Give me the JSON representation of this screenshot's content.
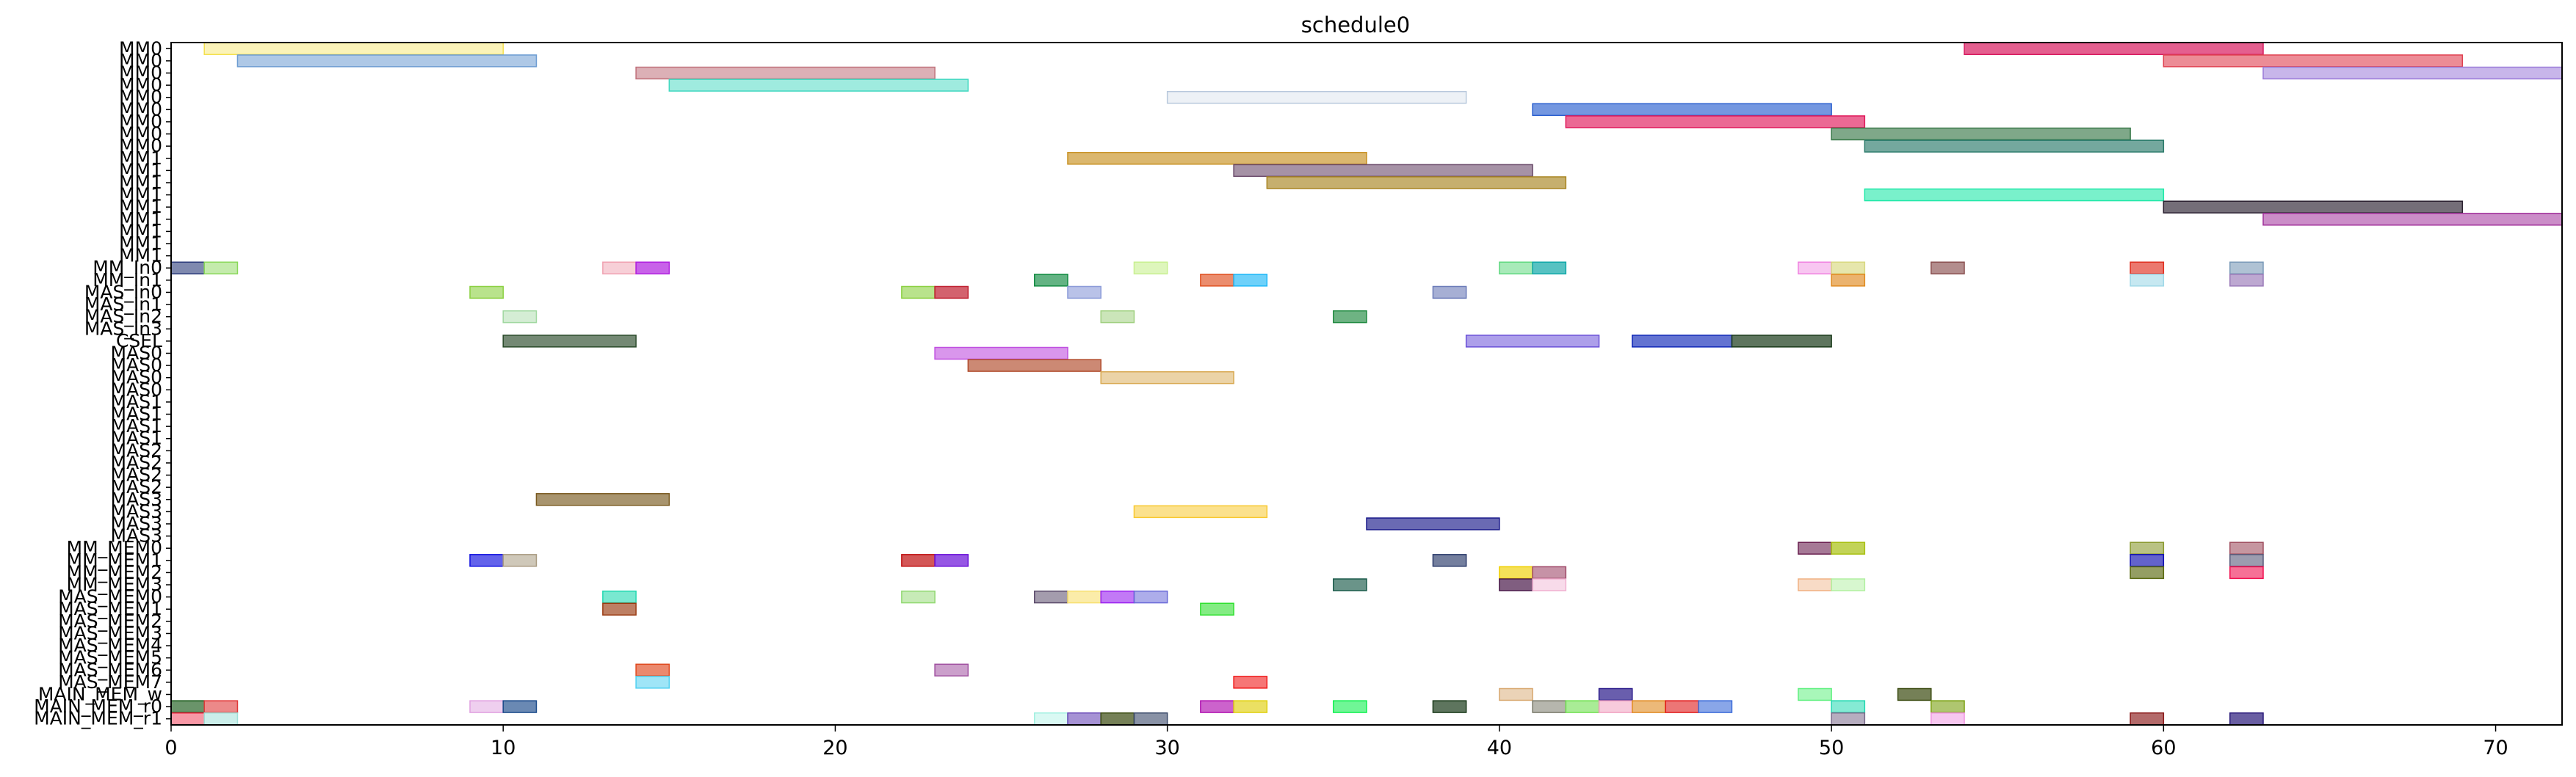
{
  "chart_data": {
    "type": "gantt",
    "title": "schedule0",
    "xlabel": "",
    "ylabel": "",
    "xlim": [
      0,
      72
    ],
    "xticks": [
      0,
      10,
      20,
      30,
      40,
      50,
      60,
      70
    ],
    "grid": false,
    "rows": [
      "MM0",
      "MM0",
      "MM0",
      "MM0",
      "MM0",
      "MM0",
      "MM0",
      "MM0",
      "MM0",
      "MM1",
      "MM1",
      "MM1",
      "MM1",
      "MM1",
      "MM1",
      "MM1",
      "MM1",
      "MM1",
      "MM_In0",
      "MM_In1",
      "MAS_In0",
      "MAS_In1",
      "MAS_In2",
      "MAS_In3",
      "CSEL",
      "MAS0",
      "MAS0",
      "MAS0",
      "MAS0",
      "MAS1",
      "MAS1",
      "MAS1",
      "MAS1",
      "MAS2",
      "MAS2",
      "MAS2",
      "MAS2",
      "MAS3",
      "MAS3",
      "MAS3",
      "MAS3",
      "MM_MEM0",
      "MM_MEM1",
      "MM_MEM2",
      "MM_MEM3",
      "MAS_MEM0",
      "MAS_MEM1",
      "MAS_MEM2",
      "MAS_MEM3",
      "MAS_MEM4",
      "MAS_MEM5",
      "MAS_MEM6",
      "MAS_MEM7",
      "MAIN_MEM_w",
      "MAIN_MEM_r0",
      "MAIN_MEM_r1"
    ],
    "tasks": [
      {
        "row": 0,
        "start": 1,
        "end": 10,
        "color": "#f4e04d",
        "alpha": 0.4
      },
      {
        "row": 0,
        "start": 54,
        "end": 63,
        "color": "#d81b60",
        "alpha": 0.7
      },
      {
        "row": 1,
        "start": 2,
        "end": 11,
        "color": "#6b9bd1",
        "alpha": 0.55
      },
      {
        "row": 1,
        "start": 60,
        "end": 69,
        "color": "#e04050",
        "alpha": 0.6
      },
      {
        "row": 2,
        "start": 14,
        "end": 23,
        "color": "#c0707a",
        "alpha": 0.55
      },
      {
        "row": 2,
        "start": 63,
        "end": 72,
        "color": "#9a7ad8",
        "alpha": 0.55
      },
      {
        "row": 3,
        "start": 15,
        "end": 24,
        "color": "#40d8c0",
        "alpha": 0.5
      },
      {
        "row": 4,
        "start": 30,
        "end": 39,
        "color": "#b8c8dc",
        "alpha": 0.25
      },
      {
        "row": 5,
        "start": 41,
        "end": 50,
        "color": "#2a5fcf",
        "alpha": 0.65
      },
      {
        "row": 6,
        "start": 42,
        "end": 51,
        "color": "#e0185a",
        "alpha": 0.65
      },
      {
        "row": 7,
        "start": 50,
        "end": 59,
        "color": "#3a7a4a",
        "alpha": 0.65
      },
      {
        "row": 8,
        "start": 51,
        "end": 60,
        "color": "#2a7a6a",
        "alpha": 0.65
      },
      {
        "row": 9,
        "start": 27,
        "end": 36,
        "color": "#c89020",
        "alpha": 0.65
      },
      {
        "row": 10,
        "start": 32,
        "end": 41,
        "color": "#6a4a6a",
        "alpha": 0.6
      },
      {
        "row": 11,
        "start": 33,
        "end": 42,
        "color": "#a88420",
        "alpha": 0.65
      },
      {
        "row": 12,
        "start": 51,
        "end": 60,
        "color": "#20e8a8",
        "alpha": 0.6
      },
      {
        "row": 13,
        "start": 60,
        "end": 69,
        "color": "#2a2030",
        "alpha": 0.65
      },
      {
        "row": 14,
        "start": 63,
        "end": 72,
        "color": "#a0309a",
        "alpha": 0.55
      },
      {
        "row": 18,
        "start": 0,
        "end": 1,
        "color": "#2a3a7a",
        "alpha": 0.6
      },
      {
        "row": 18,
        "start": 1,
        "end": 2,
        "color": "#8ad85a",
        "alpha": 0.5
      },
      {
        "row": 18,
        "start": 13,
        "end": 14,
        "color": "#f0a0b0",
        "alpha": 0.5
      },
      {
        "row": 18,
        "start": 14,
        "end": 15,
        "color": "#b020e0",
        "alpha": 0.7
      },
      {
        "row": 18,
        "start": 29,
        "end": 30,
        "color": "#c8f090",
        "alpha": 0.6
      },
      {
        "row": 18,
        "start": 40,
        "end": 41,
        "color": "#60d880",
        "alpha": 0.55
      },
      {
        "row": 18,
        "start": 41,
        "end": 42,
        "color": "#10a8a8",
        "alpha": 0.7
      },
      {
        "row": 18,
        "start": 49,
        "end": 50,
        "color": "#f080e0",
        "alpha": 0.45
      },
      {
        "row": 18,
        "start": 50,
        "end": 51,
        "color": "#d8d880",
        "alpha": 0.65
      },
      {
        "row": 18,
        "start": 53,
        "end": 54,
        "color": "#8a5050",
        "alpha": 0.65
      },
      {
        "row": 18,
        "start": 59,
        "end": 60,
        "color": "#e03020",
        "alpha": 0.65
      },
      {
        "row": 18,
        "start": 62,
        "end": 63,
        "color": "#7a9ab8",
        "alpha": 0.6
      },
      {
        "row": 19,
        "start": 26,
        "end": 27,
        "color": "#108a40",
        "alpha": 0.65
      },
      {
        "row": 19,
        "start": 31,
        "end": 32,
        "color": "#e05020",
        "alpha": 0.65
      },
      {
        "row": 19,
        "start": 32,
        "end": 33,
        "color": "#20b8f8",
        "alpha": 0.65
      },
      {
        "row": 19,
        "start": 50,
        "end": 51,
        "color": "#e08a20",
        "alpha": 0.65
      },
      {
        "row": 19,
        "start": 59,
        "end": 60,
        "color": "#a0d8e8",
        "alpha": 0.6
      },
      {
        "row": 19,
        "start": 62,
        "end": 63,
        "color": "#9a7ab8",
        "alpha": 0.65
      },
      {
        "row": 20,
        "start": 9,
        "end": 10,
        "color": "#8ad040",
        "alpha": 0.6
      },
      {
        "row": 20,
        "start": 22,
        "end": 23,
        "color": "#8ad040",
        "alpha": 0.6
      },
      {
        "row": 20,
        "start": 23,
        "end": 24,
        "color": "#c02030",
        "alpha": 0.7
      },
      {
        "row": 20,
        "start": 27,
        "end": 28,
        "color": "#8a9ad8",
        "alpha": 0.6
      },
      {
        "row": 20,
        "start": 38,
        "end": 39,
        "color": "#6a7ab8",
        "alpha": 0.6
      },
      {
        "row": 22,
        "start": 10,
        "end": 11,
        "color": "#a0d8a0",
        "alpha": 0.45
      },
      {
        "row": 22,
        "start": 28,
        "end": 29,
        "color": "#a0d080",
        "alpha": 0.55
      },
      {
        "row": 22,
        "start": 35,
        "end": 36,
        "color": "#208a40",
        "alpha": 0.65
      },
      {
        "row": 24,
        "start": 10,
        "end": 14,
        "color": "#2a4a2a",
        "alpha": 0.65
      },
      {
        "row": 24,
        "start": 39,
        "end": 43,
        "color": "#6a50d8",
        "alpha": 0.55
      },
      {
        "row": 24,
        "start": 44,
        "end": 47,
        "color": "#1028b8",
        "alpha": 0.65
      },
      {
        "row": 24,
        "start": 47,
        "end": 50,
        "color": "#1a3a1a",
        "alpha": 0.7
      },
      {
        "row": 25,
        "start": 23,
        "end": 27,
        "color": "#c050e0",
        "alpha": 0.6
      },
      {
        "row": 26,
        "start": 24,
        "end": 28,
        "color": "#b04a2a",
        "alpha": 0.65
      },
      {
        "row": 27,
        "start": 28,
        "end": 32,
        "color": "#d8a850",
        "alpha": 0.5
      },
      {
        "row": 37,
        "start": 11,
        "end": 15,
        "color": "#7a5a20",
        "alpha": 0.65
      },
      {
        "row": 38,
        "start": 29,
        "end": 33,
        "color": "#f8c830",
        "alpha": 0.55
      },
      {
        "row": 39,
        "start": 36,
        "end": 40,
        "color": "#1a1a8a",
        "alpha": 0.65
      },
      {
        "row": 41,
        "start": 49,
        "end": 50,
        "color": "#6a2050",
        "alpha": 0.6
      },
      {
        "row": 41,
        "start": 50,
        "end": 51,
        "color": "#a8c010",
        "alpha": 0.7
      },
      {
        "row": 41,
        "start": 59,
        "end": 60,
        "color": "#8a9a30",
        "alpha": 0.6
      },
      {
        "row": 41,
        "start": 62,
        "end": 63,
        "color": "#a05060",
        "alpha": 0.6
      },
      {
        "row": 42,
        "start": 9,
        "end": 10,
        "color": "#1010e0",
        "alpha": 0.65
      },
      {
        "row": 42,
        "start": 10,
        "end": 11,
        "color": "#a89a80",
        "alpha": 0.55
      },
      {
        "row": 42,
        "start": 22,
        "end": 23,
        "color": "#c01010",
        "alpha": 0.7
      },
      {
        "row": 42,
        "start": 23,
        "end": 24,
        "color": "#6a10d8",
        "alpha": 0.7
      },
      {
        "row": 42,
        "start": 38,
        "end": 39,
        "color": "#2a3a6a",
        "alpha": 0.65
      },
      {
        "row": 42,
        "start": 59,
        "end": 60,
        "color": "#1010b0",
        "alpha": 0.65
      },
      {
        "row": 42,
        "start": 62,
        "end": 63,
        "color": "#5a5a7a",
        "alpha": 0.6
      },
      {
        "row": 43,
        "start": 40,
        "end": 41,
        "color": "#f0d000",
        "alpha": 0.65
      },
      {
        "row": 43,
        "start": 41,
        "end": 42,
        "color": "#a04a6a",
        "alpha": 0.6
      },
      {
        "row": 43,
        "start": 59,
        "end": 60,
        "color": "#5a6a10",
        "alpha": 0.65
      },
      {
        "row": 43,
        "start": 62,
        "end": 63,
        "color": "#f01050",
        "alpha": 0.6
      },
      {
        "row": 44,
        "start": 35,
        "end": 36,
        "color": "#1a5a4a",
        "alpha": 0.65
      },
      {
        "row": 44,
        "start": 40,
        "end": 41,
        "color": "#4a1a4a",
        "alpha": 0.7
      },
      {
        "row": 44,
        "start": 41,
        "end": 42,
        "color": "#f0b0d0",
        "alpha": 0.45
      },
      {
        "row": 44,
        "start": 49,
        "end": 50,
        "color": "#f0b080",
        "alpha": 0.45
      },
      {
        "row": 44,
        "start": 50,
        "end": 51,
        "color": "#b0f0a0",
        "alpha": 0.5
      },
      {
        "row": 45,
        "start": 13,
        "end": 14,
        "color": "#20d8b0",
        "alpha": 0.6
      },
      {
        "row": 45,
        "start": 22,
        "end": 23,
        "color": "#90d870",
        "alpha": 0.5
      },
      {
        "row": 45,
        "start": 26,
        "end": 27,
        "color": "#5a4a6a",
        "alpha": 0.55
      },
      {
        "row": 45,
        "start": 27,
        "end": 28,
        "color": "#f8e070",
        "alpha": 0.6
      },
      {
        "row": 45,
        "start": 28,
        "end": 29,
        "color": "#9a20f0",
        "alpha": 0.6
      },
      {
        "row": 45,
        "start": 29,
        "end": 30,
        "color": "#6a6ad8",
        "alpha": 0.55
      },
      {
        "row": 46,
        "start": 13,
        "end": 14,
        "color": "#9a3a10",
        "alpha": 0.65
      },
      {
        "row": 46,
        "start": 31,
        "end": 32,
        "color": "#30e030",
        "alpha": 0.6
      },
      {
        "row": 51,
        "start": 14,
        "end": 15,
        "color": "#e04a20",
        "alpha": 0.65
      },
      {
        "row": 51,
        "start": 23,
        "end": 24,
        "color": "#a050a0",
        "alpha": 0.55
      },
      {
        "row": 52,
        "start": 14,
        "end": 15,
        "color": "#50d0f0",
        "alpha": 0.55
      },
      {
        "row": 52,
        "start": 32,
        "end": 33,
        "color": "#f01a1a",
        "alpha": 0.6
      },
      {
        "row": 53,
        "start": 40,
        "end": 41,
        "color": "#d8a870",
        "alpha": 0.5
      },
      {
        "row": 53,
        "start": 43,
        "end": 44,
        "color": "#2a1a8a",
        "alpha": 0.7
      },
      {
        "row": 53,
        "start": 49,
        "end": 50,
        "color": "#60f080",
        "alpha": 0.55
      },
      {
        "row": 53,
        "start": 52,
        "end": 53,
        "color": "#3a4a10",
        "alpha": 0.7
      },
      {
        "row": 54,
        "start": 0,
        "end": 1,
        "color": "#1a5a1a",
        "alpha": 0.65
      },
      {
        "row": 54,
        "start": 1,
        "end": 2,
        "color": "#e03a3a",
        "alpha": 0.6
      },
      {
        "row": 54,
        "start": 9,
        "end": 10,
        "color": "#e0a0e0",
        "alpha": 0.5
      },
      {
        "row": 54,
        "start": 10,
        "end": 11,
        "color": "#1a4a8a",
        "alpha": 0.65
      },
      {
        "row": 54,
        "start": 31,
        "end": 32,
        "color": "#b010b0",
        "alpha": 0.65
      },
      {
        "row": 54,
        "start": 32,
        "end": 33,
        "color": "#e0d010",
        "alpha": 0.65
      },
      {
        "row": 54,
        "start": 35,
        "end": 36,
        "color": "#10f050",
        "alpha": 0.6
      },
      {
        "row": 54,
        "start": 38,
        "end": 39,
        "color": "#1a3a1a",
        "alpha": 0.7
      },
      {
        "row": 54,
        "start": 41,
        "end": 42,
        "color": "#7a7a6a",
        "alpha": 0.55
      },
      {
        "row": 54,
        "start": 42,
        "end": 43,
        "color": "#70e050",
        "alpha": 0.6
      },
      {
        "row": 54,
        "start": 43,
        "end": 44,
        "color": "#f0a0c0",
        "alpha": 0.55
      },
      {
        "row": 54,
        "start": 44,
        "end": 45,
        "color": "#e08a20",
        "alpha": 0.6
      },
      {
        "row": 54,
        "start": 45,
        "end": 46,
        "color": "#e01a1a",
        "alpha": 0.6
      },
      {
        "row": 54,
        "start": 46,
        "end": 47,
        "color": "#3a6ad8",
        "alpha": 0.6
      },
      {
        "row": 54,
        "start": 50,
        "end": 51,
        "color": "#20d8b0",
        "alpha": 0.55
      },
      {
        "row": 54,
        "start": 53,
        "end": 54,
        "color": "#7aa010",
        "alpha": 0.6
      },
      {
        "row": 55,
        "start": 0,
        "end": 1,
        "color": "#f01a3a",
        "alpha": 0.45
      },
      {
        "row": 55,
        "start": 1,
        "end": 2,
        "color": "#a0e0d8",
        "alpha": 0.55
      },
      {
        "row": 55,
        "start": 26,
        "end": 27,
        "color": "#a0f0e0",
        "alpha": 0.4
      },
      {
        "row": 55,
        "start": 27,
        "end": 28,
        "color": "#6a4ab8",
        "alpha": 0.6
      },
      {
        "row": 55,
        "start": 28,
        "end": 29,
        "color": "#3a4a10",
        "alpha": 0.7
      },
      {
        "row": 55,
        "start": 29,
        "end": 30,
        "color": "#3a4a6a",
        "alpha": 0.6
      },
      {
        "row": 55,
        "start": 50,
        "end": 51,
        "color": "#7a6a8a",
        "alpha": 0.55
      },
      {
        "row": 55,
        "start": 53,
        "end": 54,
        "color": "#f090e0",
        "alpha": 0.5
      },
      {
        "row": 55,
        "start": 59,
        "end": 60,
        "color": "#8a1a1a",
        "alpha": 0.65
      },
      {
        "row": 55,
        "start": 62,
        "end": 63,
        "color": "#2a1a7a",
        "alpha": 0.7
      }
    ]
  }
}
